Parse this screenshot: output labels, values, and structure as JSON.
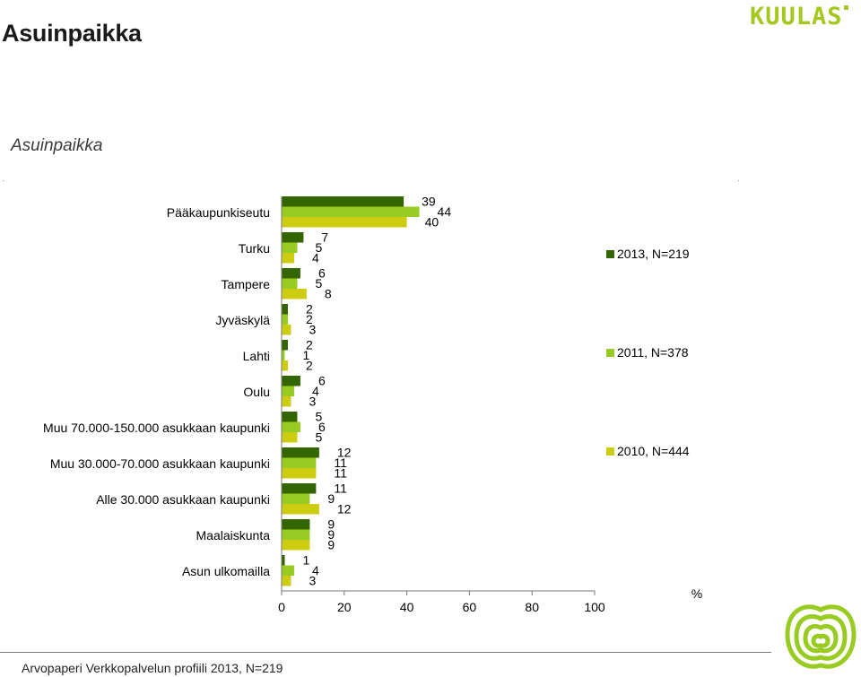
{
  "header": {
    "title": "Asuinpaikka",
    "brand": "KUULAS"
  },
  "footer": {
    "text": "Arvopaperi Verkkopalvelun profiili 2013, N=219"
  },
  "colors": {
    "s2013": "#336600",
    "s2011": "#99cc22",
    "s2010": "#cccc11",
    "brand": "#a4c81e"
  },
  "chart_data": {
    "type": "bar",
    "orientation": "horizontal",
    "title": "Asuinpaikka",
    "unit": "%",
    "categories": [
      "Pääkaupunkiseutu",
      "Turku",
      "Tampere",
      "Jyväskylä",
      "Lahti",
      "Oulu",
      "Muu 70.000-150.000 asukkaan kaupunki",
      "Muu 30.000-70.000 asukkaan kaupunki",
      "Alle 30.000 asukkaan kaupunki",
      "Maalaiskunta",
      "Asun ulkomailla"
    ],
    "series": [
      {
        "name": "2013, N=219",
        "color": "#336600",
        "values": [
          39,
          7,
          6,
          2,
          2,
          6,
          5,
          12,
          11,
          9,
          1
        ]
      },
      {
        "name": "2011, N=378",
        "color": "#99cc22",
        "values": [
          44,
          5,
          5,
          2,
          1,
          4,
          6,
          11,
          9,
          9,
          4
        ]
      },
      {
        "name": "2010, N=444",
        "color": "#cccc11",
        "values": [
          40,
          4,
          8,
          3,
          2,
          3,
          5,
          11,
          12,
          9,
          3
        ]
      }
    ],
    "xlim": [
      0,
      100
    ],
    "xticks": [
      0,
      20,
      40,
      60,
      80,
      100
    ],
    "legend_position": "right"
  }
}
